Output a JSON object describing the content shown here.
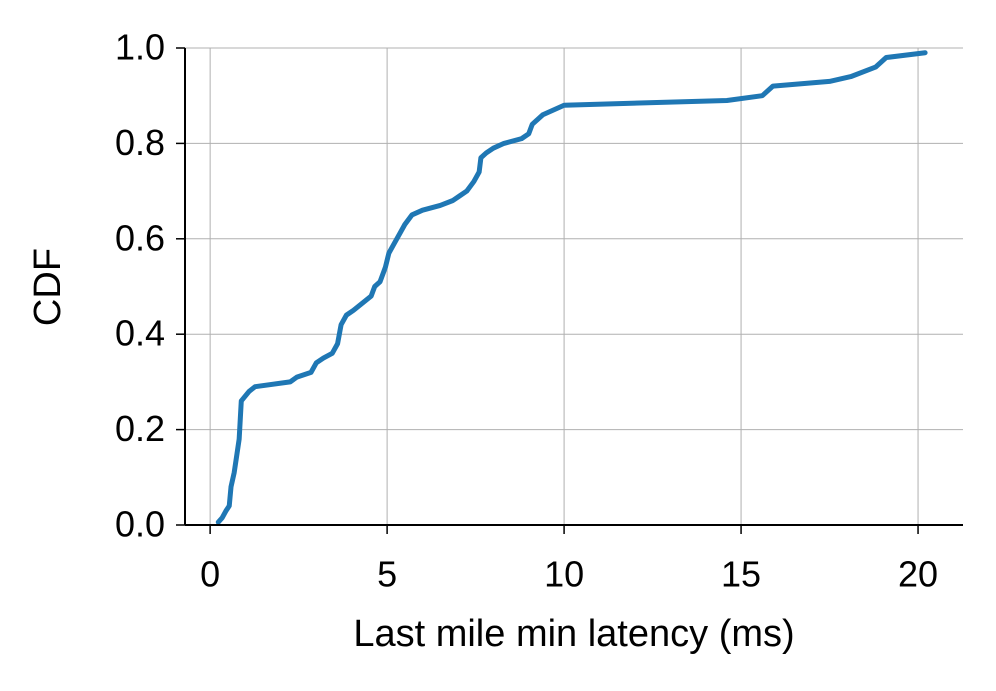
{
  "chart_data": {
    "type": "line",
    "x_label": "Last mile min latency (ms)",
    "y_label": "CDF",
    "series": [
      {
        "color": "#1f77b4",
        "x": [
          0.23,
          0.34,
          0.45,
          0.54,
          0.59,
          0.68,
          0.76,
          0.82,
          0.85,
          0.88,
          0.99,
          1.1,
          1.27,
          2.26,
          2.45,
          2.85,
          3.0,
          3.2,
          3.45,
          3.6,
          3.7,
          3.85,
          4.05,
          4.55,
          4.65,
          4.8,
          4.95,
          5.05,
          5.2,
          5.35,
          5.5,
          5.7,
          6.0,
          6.5,
          6.85,
          7.05,
          7.25,
          7.45,
          7.6,
          7.65,
          7.8,
          8.0,
          8.3,
          8.8,
          9.0,
          9.1,
          9.4,
          10.0,
          14.6,
          15.6,
          15.9,
          17.5,
          18.1,
          18.8,
          19.1,
          20.2
        ],
        "values": [
          0.006,
          0.015,
          0.03,
          0.04,
          0.08,
          0.11,
          0.15,
          0.18,
          0.22,
          0.26,
          0.27,
          0.28,
          0.29,
          0.3,
          0.31,
          0.32,
          0.34,
          0.35,
          0.36,
          0.38,
          0.42,
          0.44,
          0.45,
          0.48,
          0.5,
          0.51,
          0.54,
          0.57,
          0.59,
          0.61,
          0.63,
          0.65,
          0.66,
          0.67,
          0.68,
          0.69,
          0.7,
          0.72,
          0.74,
          0.77,
          0.78,
          0.79,
          0.8,
          0.81,
          0.82,
          0.84,
          0.86,
          0.88,
          0.89,
          0.9,
          0.92,
          0.93,
          0.94,
          0.96,
          0.98,
          0.99
        ]
      }
    ],
    "xlim": [
      -0.71,
      21.27
    ],
    "ylim": [
      0,
      1
    ],
    "xticks": [
      0,
      5,
      10,
      15,
      20
    ],
    "yticks": [
      {
        "value": 0,
        "label": "0.0"
      },
      0.2,
      0.4,
      0.6,
      0.8,
      {
        "value": 1,
        "label": "1.0"
      }
    ],
    "grid": true
  }
}
